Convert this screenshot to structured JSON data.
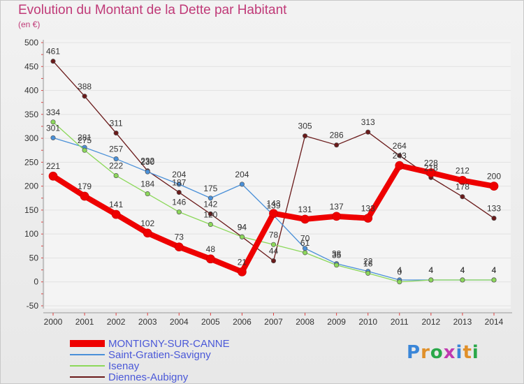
{
  "header": {
    "title": "Evolution du Montant de la Dette par Habitant",
    "subtitle": "(en €)"
  },
  "logo": {
    "text": "Proxiti",
    "colors": [
      "#3a86d8",
      "#e0902a",
      "#2aa84a",
      "#c03ab0",
      "#3a86d8",
      "#e0902a",
      "#2aa84a"
    ]
  },
  "chart_data": {
    "type": "line",
    "title": "Evolution du Montant de la Dette par Habitant",
    "ylabel": "(en €)",
    "xlabel": "",
    "ylim": [
      -50,
      500
    ],
    "yticks": [
      -50,
      0,
      50,
      100,
      150,
      200,
      250,
      300,
      350,
      400,
      450,
      500
    ],
    "x": [
      "2000",
      "2001",
      "2002",
      "2003",
      "2004",
      "2005",
      "2006",
      "2007",
      "2008",
      "2009",
      "2010",
      "2011",
      "2012",
      "2013",
      "2014"
    ],
    "legend_position": "bottom-left",
    "series": [
      {
        "name": "MONTIGNY-SUR-CANNE",
        "color": "#ee0000",
        "width": "thick",
        "labels": [
          "221",
          "179",
          "141",
          "102",
          "73",
          "48",
          "21",
          "143",
          "131",
          "137",
          "133",
          "243",
          "228",
          "212",
          "200"
        ],
        "values": [
          221,
          179,
          141,
          102,
          73,
          48,
          21,
          143,
          131,
          137,
          133,
          243,
          228,
          212,
          200
        ]
      },
      {
        "name": "Saint-Gratien-Savigny",
        "color": "#4a90d8",
        "width": "thin",
        "labels": [
          "301",
          "281",
          "257",
          "230",
          "204",
          "175",
          "204",
          "139",
          "70",
          "38",
          "22",
          "4",
          "4",
          "4",
          "4"
        ],
        "values": [
          301,
          281,
          257,
          230,
          204,
          175,
          204,
          139,
          70,
          38,
          22,
          4,
          4,
          4,
          4
        ]
      },
      {
        "name": "Isenay",
        "color": "#8cd85a",
        "width": "thin",
        "labels": [
          "334",
          "275",
          "222",
          "184",
          "146",
          "120",
          "94",
          "78",
          "61",
          "35",
          "18",
          "0",
          "4",
          "4",
          "4"
        ],
        "values": [
          334,
          275,
          222,
          184,
          146,
          120,
          94,
          78,
          61,
          35,
          18,
          0,
          4,
          4,
          4
        ]
      },
      {
        "name": "Diennes-Aubigny",
        "color": "#6a1a1a",
        "width": "thin",
        "labels": [
          "461",
          "388",
          "311",
          "232",
          "187",
          "142",
          "94",
          "44",
          "305",
          "286",
          "313",
          "264",
          "218",
          "178",
          "133"
        ],
        "values": [
          461,
          388,
          311,
          232,
          187,
          142,
          94,
          44,
          305,
          286,
          313,
          264,
          218,
          178,
          133
        ]
      }
    ]
  }
}
